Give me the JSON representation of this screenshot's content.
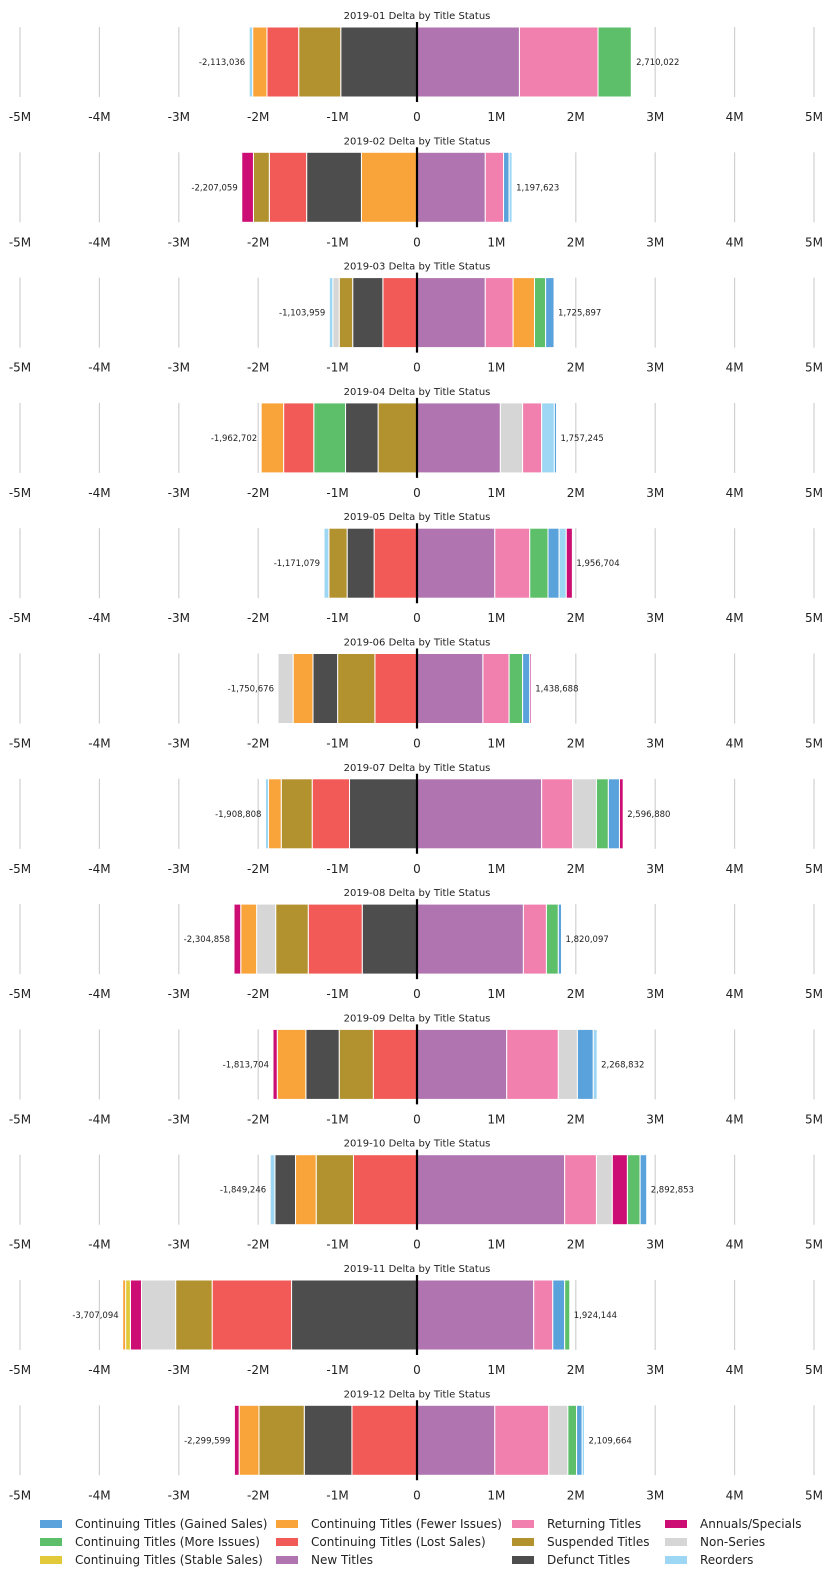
{
  "colors": {
    "Continuing Titles (Gained Sales)": "#5aa2dc",
    "Continuing Titles (More Issues)": "#5dbf6a",
    "Continuing Titles (Stable Sales)": "#e1c93a",
    "Continuing Titles (Fewer Issues)": "#f9a43b",
    "Continuing Titles (Lost Sales)": "#f15a57",
    "New Titles": "#b074b0",
    "Returning Titles": "#f180af",
    "Suspended Titles": "#b2922f",
    "Defunct Titles": "#4d4d4d",
    "Annuals/Specials": "#cc0d73",
    "Non-Series": "#d6d6d6",
    "Reorders": "#9dd7f3"
  },
  "legend": {
    "items": [
      "Continuing Titles (Gained Sales)",
      "Continuing Titles (Fewer Issues)",
      "Returning Titles",
      "Annuals/Specials",
      "Continuing Titles (More Issues)",
      "Continuing Titles (Lost Sales)",
      "Suspended Titles",
      "Non-Series",
      "Continuing Titles (Stable Sales)",
      "New Titles",
      "Defunct Titles",
      "Reorders"
    ]
  },
  "chart_data": [
    {
      "type": "bar",
      "title": "2019-01 Delta by Title Status",
      "xlim": [
        -5000000,
        5000000
      ],
      "xticks": [
        "-5M",
        "-4M",
        "-3M",
        "-2M",
        "-1M",
        "0",
        "1M",
        "2M",
        "3M",
        "4M",
        "5M"
      ],
      "neg_total_label": "-2,113,036",
      "pos_total_label": "2,710,022",
      "negative": [
        {
          "name": "Defunct Titles",
          "value": -960000
        },
        {
          "name": "Suspended Titles",
          "value": -530000
        },
        {
          "name": "Continuing Titles (Lost Sales)",
          "value": -400000
        },
        {
          "name": "Continuing Titles (Fewer Issues)",
          "value": -180000
        },
        {
          "name": "Reorders",
          "value": -43036
        }
      ],
      "positive": [
        {
          "name": "New Titles",
          "value": 1290000
        },
        {
          "name": "Returning Titles",
          "value": 990000
        },
        {
          "name": "Continuing Titles (More Issues)",
          "value": 420000
        },
        {
          "name": "Reorders",
          "value": 10022
        }
      ]
    },
    {
      "type": "bar",
      "title": "2019-02 Delta by Title Status",
      "xlim": [
        -5000000,
        5000000
      ],
      "xticks": [
        "-5M",
        "-4M",
        "-3M",
        "-2M",
        "-1M",
        "0",
        "1M",
        "2M",
        "3M",
        "4M",
        "5M"
      ],
      "neg_total_label": "-2,207,059",
      "pos_total_label": "1,197,623",
      "negative": [
        {
          "name": "Continuing Titles (Fewer Issues)",
          "value": -700000
        },
        {
          "name": "Defunct Titles",
          "value": -690000
        },
        {
          "name": "Continuing Titles (Lost Sales)",
          "value": -470000
        },
        {
          "name": "Suspended Titles",
          "value": -200000
        },
        {
          "name": "Annuals/Specials",
          "value": -147059
        }
      ],
      "positive": [
        {
          "name": "New Titles",
          "value": 860000
        },
        {
          "name": "Returning Titles",
          "value": 230000
        },
        {
          "name": "Continuing Titles (Gained Sales)",
          "value": 70000
        },
        {
          "name": "Reorders",
          "value": 37623
        }
      ]
    },
    {
      "type": "bar",
      "title": "2019-03 Delta by Title Status",
      "xlim": [
        -5000000,
        5000000
      ],
      "xticks": [
        "-5M",
        "-4M",
        "-3M",
        "-2M",
        "-1M",
        "0",
        "1M",
        "2M",
        "3M",
        "4M",
        "5M"
      ],
      "neg_total_label": "-1,103,959",
      "pos_total_label": "1,725,897",
      "negative": [
        {
          "name": "Continuing Titles (Lost Sales)",
          "value": -430000
        },
        {
          "name": "Defunct Titles",
          "value": -380000
        },
        {
          "name": "Suspended Titles",
          "value": -170000
        },
        {
          "name": "Non-Series",
          "value": -80000
        },
        {
          "name": "Reorders",
          "value": -43959
        }
      ],
      "positive": [
        {
          "name": "New Titles",
          "value": 860000
        },
        {
          "name": "Returning Titles",
          "value": 350000
        },
        {
          "name": "Continuing Titles (Fewer Issues)",
          "value": 270000
        },
        {
          "name": "Continuing Titles (More Issues)",
          "value": 140000
        },
        {
          "name": "Continuing Titles (Gained Sales)",
          "value": 105897
        }
      ]
    },
    {
      "type": "bar",
      "title": "2019-04 Delta by Title Status",
      "xlim": [
        -5000000,
        5000000
      ],
      "xticks": [
        "-5M",
        "-4M",
        "-3M",
        "-2M",
        "-1M",
        "0",
        "1M",
        "2M",
        "3M",
        "4M",
        "5M"
      ],
      "neg_total_label": "-1,962,702",
      "pos_total_label": "1,757,245",
      "negative": [
        {
          "name": "Suspended Titles",
          "value": -490000
        },
        {
          "name": "Defunct Titles",
          "value": -410000
        },
        {
          "name": "Continuing Titles (More Issues)",
          "value": -400000
        },
        {
          "name": "Continuing Titles (Lost Sales)",
          "value": -380000
        },
        {
          "name": "Continuing Titles (Fewer Issues)",
          "value": -282702
        }
      ],
      "positive": [
        {
          "name": "New Titles",
          "value": 1050000
        },
        {
          "name": "Non-Series",
          "value": 280000
        },
        {
          "name": "Returning Titles",
          "value": 240000
        },
        {
          "name": "Reorders",
          "value": 160000
        },
        {
          "name": "Continuing Titles (Gained Sales)",
          "value": 27245
        }
      ]
    },
    {
      "type": "bar",
      "title": "2019-05 Delta by Title Status",
      "xlim": [
        -5000000,
        5000000
      ],
      "xticks": [
        "-5M",
        "-4M",
        "-3M",
        "-2M",
        "-1M",
        "0",
        "1M",
        "2M",
        "3M",
        "4M",
        "5M"
      ],
      "neg_total_label": "-1,171,079",
      "pos_total_label": "1,956,704",
      "negative": [
        {
          "name": "Continuing Titles (Lost Sales)",
          "value": -540000
        },
        {
          "name": "Defunct Titles",
          "value": -340000
        },
        {
          "name": "Suspended Titles",
          "value": -230000
        },
        {
          "name": "Reorders",
          "value": -61079
        }
      ],
      "positive": [
        {
          "name": "New Titles",
          "value": 980000
        },
        {
          "name": "Returning Titles",
          "value": 440000
        },
        {
          "name": "Continuing Titles (More Issues)",
          "value": 230000
        },
        {
          "name": "Continuing Titles (Gained Sales)",
          "value": 140000
        },
        {
          "name": "Reorders",
          "value": 90000
        },
        {
          "name": "Annuals/Specials",
          "value": 76704
        }
      ]
    },
    {
      "type": "bar",
      "title": "2019-06 Delta by Title Status",
      "xlim": [
        -5000000,
        5000000
      ],
      "xticks": [
        "-5M",
        "-4M",
        "-3M",
        "-2M",
        "-1M",
        "0",
        "1M",
        "2M",
        "3M",
        "4M",
        "5M"
      ],
      "neg_total_label": "-1,750,676",
      "pos_total_label": "1,438,688",
      "negative": [
        {
          "name": "Continuing Titles (Lost Sales)",
          "value": -530000
        },
        {
          "name": "Suspended Titles",
          "value": -470000
        },
        {
          "name": "Defunct Titles",
          "value": -310000
        },
        {
          "name": "Continuing Titles (Fewer Issues)",
          "value": -250000
        },
        {
          "name": "Non-Series",
          "value": -190676
        }
      ],
      "positive": [
        {
          "name": "New Titles",
          "value": 830000
        },
        {
          "name": "Returning Titles",
          "value": 330000
        },
        {
          "name": "Continuing Titles (More Issues)",
          "value": 170000
        },
        {
          "name": "Continuing Titles (Gained Sales)",
          "value": 90000
        },
        {
          "name": "Annuals/Specials",
          "value": 18688
        }
      ]
    },
    {
      "type": "bar",
      "title": "2019-07 Delta by Title Status",
      "xlim": [
        -5000000,
        5000000
      ],
      "xticks": [
        "-5M",
        "-4M",
        "-3M",
        "-2M",
        "-1M",
        "0",
        "1M",
        "2M",
        "3M",
        "4M",
        "5M"
      ],
      "neg_total_label": "-1,908,808",
      "pos_total_label": "2,596,880",
      "negative": [
        {
          "name": "Defunct Titles",
          "value": -850000
        },
        {
          "name": "Continuing Titles (Lost Sales)",
          "value": -470000
        },
        {
          "name": "Suspended Titles",
          "value": -390000
        },
        {
          "name": "Continuing Titles (Fewer Issues)",
          "value": -160000
        },
        {
          "name": "Reorders",
          "value": -38808
        }
      ],
      "positive": [
        {
          "name": "New Titles",
          "value": 1570000
        },
        {
          "name": "Returning Titles",
          "value": 390000
        },
        {
          "name": "Non-Series",
          "value": 300000
        },
        {
          "name": "Continuing Titles (More Issues)",
          "value": 150000
        },
        {
          "name": "Continuing Titles (Gained Sales)",
          "value": 140000
        },
        {
          "name": "Annuals/Specials",
          "value": 46880
        }
      ]
    },
    {
      "type": "bar",
      "title": "2019-08 Delta by Title Status",
      "xlim": [
        -5000000,
        5000000
      ],
      "xticks": [
        "-5M",
        "-4M",
        "-3M",
        "-2M",
        "-1M",
        "0",
        "1M",
        "2M",
        "3M",
        "4M",
        "5M"
      ],
      "neg_total_label": "-2,304,858",
      "pos_total_label": "1,820,097",
      "negative": [
        {
          "name": "Defunct Titles",
          "value": -690000
        },
        {
          "name": "Continuing Titles (Lost Sales)",
          "value": -680000
        },
        {
          "name": "Suspended Titles",
          "value": -410000
        },
        {
          "name": "Non-Series",
          "value": -240000
        },
        {
          "name": "Continuing Titles (Fewer Issues)",
          "value": -200000
        },
        {
          "name": "Annuals/Specials",
          "value": -84858
        }
      ],
      "positive": [
        {
          "name": "New Titles",
          "value": 1340000
        },
        {
          "name": "Returning Titles",
          "value": 290000
        },
        {
          "name": "Continuing Titles (More Issues)",
          "value": 150000
        },
        {
          "name": "Continuing Titles (Gained Sales)",
          "value": 40097
        }
      ]
    },
    {
      "type": "bar",
      "title": "2019-09 Delta by Title Status",
      "xlim": [
        -5000000,
        5000000
      ],
      "xticks": [
        "-5M",
        "-4M",
        "-3M",
        "-2M",
        "-1M",
        "0",
        "1M",
        "2M",
        "3M",
        "4M",
        "5M"
      ],
      "neg_total_label": "-1,813,704",
      "pos_total_label": "2,268,832",
      "negative": [
        {
          "name": "Continuing Titles (Lost Sales)",
          "value": -550000
        },
        {
          "name": "Suspended Titles",
          "value": -430000
        },
        {
          "name": "Defunct Titles",
          "value": -420000
        },
        {
          "name": "Continuing Titles (Fewer Issues)",
          "value": -360000
        },
        {
          "name": "Annuals/Specials",
          "value": -53704
        }
      ],
      "positive": [
        {
          "name": "New Titles",
          "value": 1130000
        },
        {
          "name": "Returning Titles",
          "value": 650000
        },
        {
          "name": "Non-Series",
          "value": 240000
        },
        {
          "name": "Continuing Titles (Gained Sales)",
          "value": 200000
        },
        {
          "name": "Reorders",
          "value": 48832
        }
      ]
    },
    {
      "type": "bar",
      "title": "2019-10 Delta by Title Status",
      "xlim": [
        -5000000,
        5000000
      ],
      "xticks": [
        "-5M",
        "-4M",
        "-3M",
        "-2M",
        "-1M",
        "0",
        "1M",
        "2M",
        "3M",
        "4M",
        "5M"
      ],
      "neg_total_label": "-1,849,246",
      "pos_total_label": "2,892,853",
      "negative": [
        {
          "name": "Continuing Titles (Lost Sales)",
          "value": -800000
        },
        {
          "name": "Suspended Titles",
          "value": -470000
        },
        {
          "name": "Continuing Titles (Fewer Issues)",
          "value": -260000
        },
        {
          "name": "Defunct Titles",
          "value": -260000
        },
        {
          "name": "Reorders",
          "value": -59246
        }
      ],
      "positive": [
        {
          "name": "New Titles",
          "value": 1860000
        },
        {
          "name": "Returning Titles",
          "value": 400000
        },
        {
          "name": "Non-Series",
          "value": 200000
        },
        {
          "name": "Annuals/Specials",
          "value": 190000
        },
        {
          "name": "Continuing Titles (More Issues)",
          "value": 160000
        },
        {
          "name": "Continuing Titles (Gained Sales)",
          "value": 82853
        }
      ]
    },
    {
      "type": "bar",
      "title": "2019-11 Delta by Title Status",
      "xlim": [
        -5000000,
        5000000
      ],
      "xticks": [
        "-5M",
        "-4M",
        "-3M",
        "-2M",
        "-1M",
        "0",
        "1M",
        "2M",
        "3M",
        "4M",
        "5M"
      ],
      "neg_total_label": "-3,707,094",
      "pos_total_label": "1,924,144",
      "negative": [
        {
          "name": "Defunct Titles",
          "value": -1580000
        },
        {
          "name": "Continuing Titles (Lost Sales)",
          "value": -1000000
        },
        {
          "name": "Suspended Titles",
          "value": -460000
        },
        {
          "name": "Non-Series",
          "value": -430000
        },
        {
          "name": "Annuals/Specials",
          "value": -140000
        },
        {
          "name": "Continuing Titles (Stable Sales)",
          "value": -60000
        },
        {
          "name": "Continuing Titles (Fewer Issues)",
          "value": -37094
        }
      ],
      "positive": [
        {
          "name": "New Titles",
          "value": 1470000
        },
        {
          "name": "Returning Titles",
          "value": 240000
        },
        {
          "name": "Continuing Titles (Gained Sales)",
          "value": 150000
        },
        {
          "name": "Continuing Titles (More Issues)",
          "value": 64144
        }
      ]
    },
    {
      "type": "bar",
      "title": "2019-12 Delta by Title Status",
      "xlim": [
        -5000000,
        5000000
      ],
      "xticks": [
        "-5M",
        "-4M",
        "-3M",
        "-2M",
        "-1M",
        "0",
        "1M",
        "2M",
        "3M",
        "4M",
        "5M"
      ],
      "neg_total_label": "-2,299,599",
      "pos_total_label": "2,109,664",
      "negative": [
        {
          "name": "Continuing Titles (Lost Sales)",
          "value": -820000
        },
        {
          "name": "Defunct Titles",
          "value": -600000
        },
        {
          "name": "Suspended Titles",
          "value": -570000
        },
        {
          "name": "Continuing Titles (Fewer Issues)",
          "value": -250000
        },
        {
          "name": "Annuals/Specials",
          "value": -59599
        }
      ],
      "positive": [
        {
          "name": "New Titles",
          "value": 980000
        },
        {
          "name": "Returning Titles",
          "value": 680000
        },
        {
          "name": "Non-Series",
          "value": 240000
        },
        {
          "name": "Continuing Titles (More Issues)",
          "value": 110000
        },
        {
          "name": "Continuing Titles (Gained Sales)",
          "value": 70000
        },
        {
          "name": "Reorders",
          "value": 29664
        }
      ]
    }
  ]
}
